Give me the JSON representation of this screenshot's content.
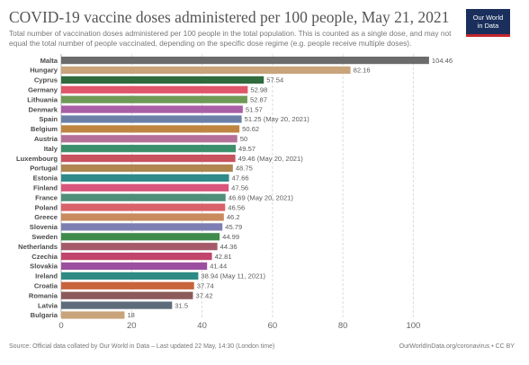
{
  "header": {
    "title": "COVID-19 vaccine doses administered per 100 people, May 21, 2021",
    "subtitle": "Total number of vaccination doses administered per 100 people in the total population. This is counted as a single dose, and may not equal the total number of people vaccinated, depending on the specific dose regime (e.g. people receive multiple doses).",
    "logo_line1": "Our World",
    "logo_line2": "in Data",
    "logo_bg": "#1a2f5c",
    "logo_accent": "#c1272d"
  },
  "footer": {
    "source": "Source: Official data collated by Our World in Data – Last updated 22 May, 14:30 (London time)",
    "license": "OurWorldInData.org/coronavirus • CC BY"
  },
  "chart_data": {
    "type": "bar",
    "orientation": "horizontal",
    "xlim": [
      0,
      105
    ],
    "xticks": [
      0,
      20,
      40,
      60,
      80,
      100
    ],
    "grid": true,
    "bars": [
      {
        "country": "Malta",
        "value": 104.46,
        "label": "104.46",
        "color": "#6b6b6b"
      },
      {
        "country": "Hungary",
        "value": 82.16,
        "label": "82.16",
        "color": "#c9a47a"
      },
      {
        "country": "Cyprus",
        "value": 57.54,
        "label": "57.54",
        "color": "#2f6b3c"
      },
      {
        "country": "Germany",
        "value": 52.98,
        "label": "52.98",
        "color": "#e0566a"
      },
      {
        "country": "Lithuania",
        "value": 52.87,
        "label": "52.87",
        "color": "#6e9a56"
      },
      {
        "country": "Denmark",
        "value": 51.57,
        "label": "51.57",
        "color": "#a95fa6"
      },
      {
        "country": "Spain",
        "value": 51.25,
        "label": "51.25 (May 20, 2021)",
        "color": "#6b7fa8"
      },
      {
        "country": "Belgium",
        "value": 50.62,
        "label": "50.62",
        "color": "#bf8540"
      },
      {
        "country": "Austria",
        "value": 50,
        "label": "50",
        "color": "#b56f98"
      },
      {
        "country": "Italy",
        "value": 49.57,
        "label": "49.57",
        "color": "#3b8f6a"
      },
      {
        "country": "Luxembourg",
        "value": 49.46,
        "label": "49.46 (May 20, 2021)",
        "color": "#c8525e"
      },
      {
        "country": "Portugal",
        "value": 48.75,
        "label": "48.75",
        "color": "#b0854f"
      },
      {
        "country": "Estonia",
        "value": 47.66,
        "label": "47.66",
        "color": "#2f8a8a"
      },
      {
        "country": "Finland",
        "value": 47.56,
        "label": "47.56",
        "color": "#d9567a"
      },
      {
        "country": "France",
        "value": 46.69,
        "label": "46.69 (May 20, 2021)",
        "color": "#4e8f7a"
      },
      {
        "country": "Poland",
        "value": 46.56,
        "label": "46.56",
        "color": "#d96168"
      },
      {
        "country": "Greece",
        "value": 46.2,
        "label": "46.2",
        "color": "#c98a5e"
      },
      {
        "country": "Slovenia",
        "value": 45.79,
        "label": "45.79",
        "color": "#7d7fb4"
      },
      {
        "country": "Sweden",
        "value": 44.99,
        "label": "44.99",
        "color": "#3f8b4c"
      },
      {
        "country": "Netherlands",
        "value": 44.36,
        "label": "44.36",
        "color": "#a55a6a"
      },
      {
        "country": "Czechia",
        "value": 42.81,
        "label": "42.81",
        "color": "#c2456b"
      },
      {
        "country": "Slovakia",
        "value": 41.44,
        "label": "41.44",
        "color": "#9c4fa0"
      },
      {
        "country": "Ireland",
        "value": 38.94,
        "label": "38.94 (May 11, 2021)",
        "color": "#2e8a84"
      },
      {
        "country": "Croatia",
        "value": 37.74,
        "label": "37.74",
        "color": "#c8643c"
      },
      {
        "country": "Romania",
        "value": 37.42,
        "label": "37.42",
        "color": "#8c5a5a"
      },
      {
        "country": "Latvia",
        "value": 31.5,
        "label": "31.5",
        "color": "#5d6b7a"
      },
      {
        "country": "Bulgaria",
        "value": 18,
        "label": "18",
        "color": "#c9a47a"
      }
    ]
  }
}
